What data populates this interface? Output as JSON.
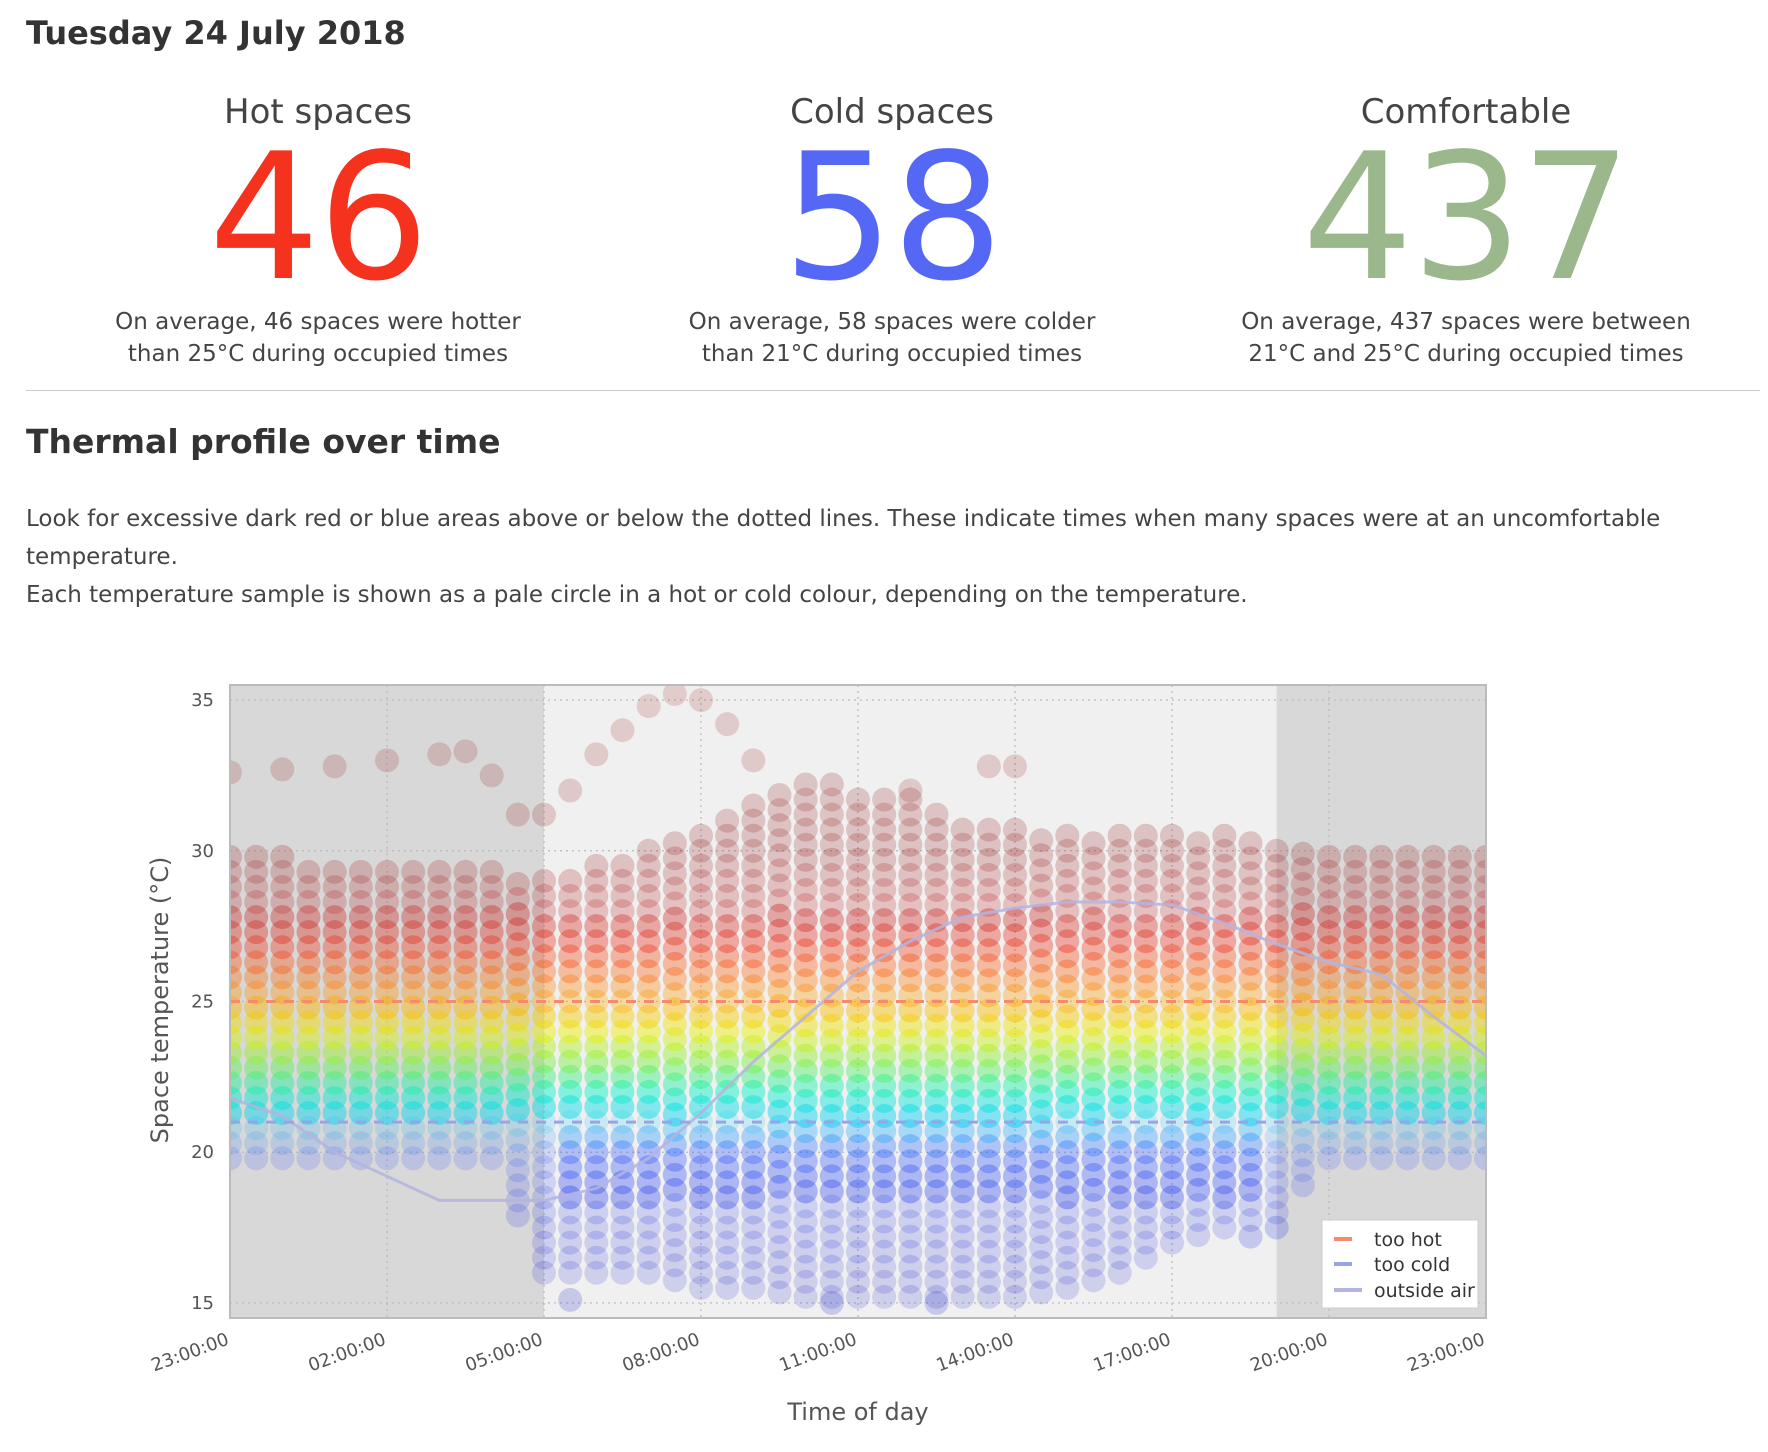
{
  "date_title": "Tuesday 24 July 2018",
  "stats": [
    {
      "label": "Hot spaces",
      "value": "46",
      "color": "#f5321e",
      "desc_line1": "On average, 46 spaces were hotter",
      "desc_line2": "than 25°C during occupied times"
    },
    {
      "label": "Cold spaces",
      "value": "58",
      "color": "#5468f5",
      "desc_line1": "On average, 58 spaces were colder",
      "desc_line2": "than 21°C during occupied times"
    },
    {
      "label": "Comfortable",
      "value": "437",
      "color": "#9ab88c",
      "desc_line1": "On average, 437 spaces were between",
      "desc_line2": "21°C and 25°C during occupied times"
    }
  ],
  "section_title": "Thermal profile over time",
  "paragraph": [
    "Look for excessive dark red or blue areas above or below the dotted lines. These indicate times when many spaces were at an uncomfortable temperature.",
    "Each temperature sample is shown as a pale circle in a hot or cold colour, depending on the temperature."
  ],
  "chart_data": {
    "type": "scatter",
    "xlabel": "Time of day",
    "ylabel": "Space temperature (°C)",
    "xlim": [
      -1,
      23
    ],
    "ylim": [
      14.5,
      35.5
    ],
    "x_ticks": [
      "23:00:00",
      "02:00:00",
      "05:00:00",
      "08:00:00",
      "11:00:00",
      "14:00:00",
      "17:00:00",
      "20:00:00",
      "23:00:00"
    ],
    "x_tick_hours": [
      -1,
      2,
      5,
      8,
      11,
      14,
      17,
      20,
      23
    ],
    "y_ticks": [
      15,
      20,
      25,
      30,
      35
    ],
    "grid": true,
    "occupied_period_hours": [
      5,
      19
    ],
    "thresholds": {
      "too_hot": 25,
      "too_cold": 21
    },
    "colors": {
      "too_hot": "#f58a6e",
      "too_cold": "#9ba3e8",
      "outside_air": "#b4b4e0",
      "unoccupied_bg": "#d8d8d8",
      "occupied_bg": "#f0f0f0"
    },
    "legend": {
      "placement": "bottom-right",
      "entries": [
        "too hot",
        "too cold",
        "outside air"
      ]
    },
    "outside_air": {
      "x": [
        -1,
        0,
        1,
        2,
        3,
        4,
        5,
        6,
        7,
        8,
        9,
        10,
        11,
        12,
        13,
        14,
        15,
        16,
        17,
        18,
        19,
        20,
        21,
        22,
        23
      ],
      "y": [
        21.8,
        21.2,
        20.0,
        19.2,
        18.4,
        18.4,
        18.4,
        18.8,
        19.8,
        21.3,
        23.0,
        24.5,
        26.0,
        27.0,
        27.8,
        28.1,
        28.3,
        28.3,
        28.2,
        27.6,
        26.9,
        26.3,
        25.9,
        24.5,
        23.2
      ]
    },
    "distribution": {
      "description_hours": [
        -1,
        0,
        1,
        2,
        3,
        4,
        5,
        6,
        7,
        8,
        9,
        10,
        11,
        12,
        13,
        14,
        15,
        16,
        17,
        18,
        19,
        20,
        21,
        22,
        23
      ],
      "low": [
        19.8,
        19.8,
        19.8,
        19.8,
        19.8,
        19.8,
        16.0,
        16.0,
        16.0,
        15.5,
        15.5,
        15.2,
        15.2,
        15.2,
        15.2,
        15.2,
        15.5,
        16.0,
        17.0,
        17.5,
        18.0,
        19.8,
        19.8,
        19.8,
        19.8
      ],
      "high": [
        30.0,
        30.0,
        29.5,
        29.5,
        29.5,
        29.5,
        29.0,
        29.5,
        30.0,
        30.5,
        31.5,
        32.5,
        32.0,
        32.0,
        31.0,
        31.0,
        30.5,
        30.5,
        30.5,
        30.5,
        30.0,
        30.0,
        30.0,
        30.0,
        30.0
      ]
    },
    "outliers": [
      {
        "x": -1,
        "y": 32.6
      },
      {
        "x": 0,
        "y": 32.7
      },
      {
        "x": 1,
        "y": 32.8
      },
      {
        "x": 2,
        "y": 33.0
      },
      {
        "x": 3,
        "y": 33.2
      },
      {
        "x": 3.5,
        "y": 33.3
      },
      {
        "x": 4,
        "y": 32.5
      },
      {
        "x": 4.5,
        "y": 31.2
      },
      {
        "x": 5,
        "y": 31.2
      },
      {
        "x": 5.5,
        "y": 32.0
      },
      {
        "x": 6,
        "y": 33.2
      },
      {
        "x": 6.5,
        "y": 34.0
      },
      {
        "x": 7,
        "y": 34.8
      },
      {
        "x": 7.5,
        "y": 35.2
      },
      {
        "x": 8,
        "y": 35.0
      },
      {
        "x": 8.5,
        "y": 34.2
      },
      {
        "x": 9,
        "y": 33.0
      },
      {
        "x": 12,
        "y": 32.0
      },
      {
        "x": 13.5,
        "y": 32.8
      },
      {
        "x": 14,
        "y": 32.8
      },
      {
        "x": 12.5,
        "y": 15.0
      },
      {
        "x": 10.5,
        "y": 15.0
      },
      {
        "x": 5.5,
        "y": 15.1
      },
      {
        "x": 19,
        "y": 17.5
      },
      {
        "x": 18.5,
        "y": 17.2
      }
    ]
  }
}
